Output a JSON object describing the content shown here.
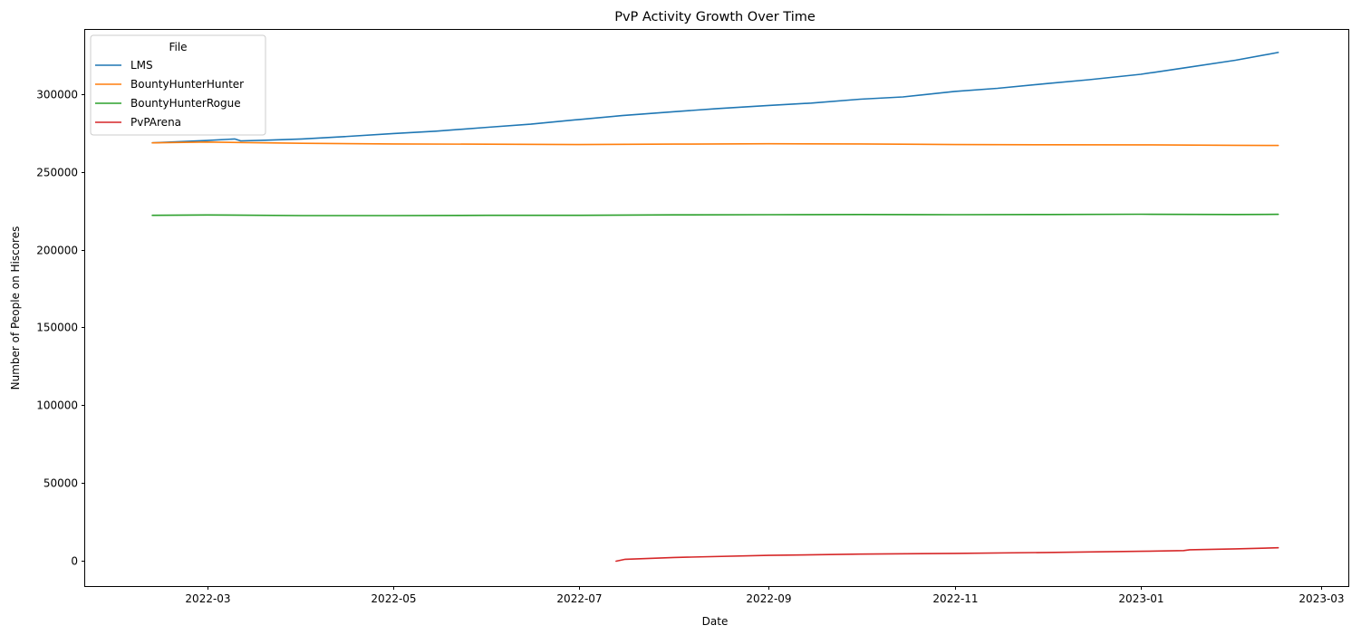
{
  "chart_data": {
    "type": "line",
    "title": "PvP Activity Growth Over Time",
    "xlabel": "Date",
    "ylabel": "Number of People on Hiscores",
    "x_type": "date",
    "xlim": [
      "2022-01-20",
      "2023-03-10"
    ],
    "ylim": [
      -16000,
      341000
    ],
    "xticks": [
      "2022-03-01",
      "2022-05-01",
      "2022-07-01",
      "2022-09-01",
      "2022-11-01",
      "2023-01-01",
      "2023-03-01"
    ],
    "xtick_labels": [
      "2022-03",
      "2022-05",
      "2022-07",
      "2022-09",
      "2022-11",
      "2023-01",
      "2023-03"
    ],
    "yticks": [
      0,
      50000,
      100000,
      150000,
      200000,
      250000,
      300000
    ],
    "ytick_labels": [
      "0",
      "50000",
      "100000",
      "150000",
      "200000",
      "250000",
      "300000"
    ],
    "grid": false,
    "legend": {
      "title": "File",
      "placement": "upper left"
    },
    "series": [
      {
        "name": "LMS",
        "color": "#1f77b4",
        "points": [
          [
            "2022-02-11",
            268500
          ],
          [
            "2022-03-01",
            270000
          ],
          [
            "2022-03-10",
            271000
          ],
          [
            "2022-03-12",
            269800
          ],
          [
            "2022-03-20",
            270200
          ],
          [
            "2022-04-01",
            271000
          ],
          [
            "2022-04-15",
            272500
          ],
          [
            "2022-05-01",
            274500
          ],
          [
            "2022-05-15",
            276000
          ],
          [
            "2022-06-01",
            278500
          ],
          [
            "2022-06-15",
            280500
          ],
          [
            "2022-07-01",
            283500
          ],
          [
            "2022-07-15",
            286000
          ],
          [
            "2022-08-01",
            288500
          ],
          [
            "2022-08-15",
            290500
          ],
          [
            "2022-09-01",
            292500
          ],
          [
            "2022-09-15",
            294000
          ],
          [
            "2022-10-01",
            296500
          ],
          [
            "2022-10-15",
            298000
          ],
          [
            "2022-11-01",
            301500
          ],
          [
            "2022-11-15",
            303500
          ],
          [
            "2022-12-01",
            306500
          ],
          [
            "2022-12-15",
            309000
          ],
          [
            "2023-01-01",
            312500
          ],
          [
            "2023-01-15",
            316500
          ],
          [
            "2023-02-01",
            321500
          ],
          [
            "2023-02-15",
            326500
          ]
        ]
      },
      {
        "name": "BountyHunterHunter",
        "color": "#ff7f0e",
        "points": [
          [
            "2022-02-11",
            268500
          ],
          [
            "2022-03-01",
            269000
          ],
          [
            "2022-04-01",
            268200
          ],
          [
            "2022-05-01",
            267800
          ],
          [
            "2022-06-01",
            267600
          ],
          [
            "2022-07-01",
            267400
          ],
          [
            "2022-08-01",
            267700
          ],
          [
            "2022-09-01",
            267900
          ],
          [
            "2022-10-01",
            267800
          ],
          [
            "2022-11-01",
            267400
          ],
          [
            "2022-12-01",
            267300
          ],
          [
            "2023-01-01",
            267200
          ],
          [
            "2023-02-01",
            266900
          ],
          [
            "2023-02-15",
            266800
          ]
        ]
      },
      {
        "name": "BountyHunterRogue",
        "color": "#2ca02c",
        "points": [
          [
            "2022-02-11",
            222000
          ],
          [
            "2022-03-01",
            222200
          ],
          [
            "2022-04-01",
            221800
          ],
          [
            "2022-05-01",
            221800
          ],
          [
            "2022-06-01",
            222000
          ],
          [
            "2022-07-01",
            222000
          ],
          [
            "2022-08-01",
            222300
          ],
          [
            "2022-09-01",
            222400
          ],
          [
            "2022-10-01",
            222500
          ],
          [
            "2022-11-01",
            222400
          ],
          [
            "2022-12-01",
            222500
          ],
          [
            "2023-01-01",
            222700
          ],
          [
            "2023-02-01",
            222500
          ],
          [
            "2023-02-15",
            222600
          ]
        ]
      },
      {
        "name": "PvPArena",
        "color": "#d62728",
        "points": [
          [
            "2022-07-13",
            0
          ],
          [
            "2022-07-16",
            1200
          ],
          [
            "2022-08-01",
            2400
          ],
          [
            "2022-09-01",
            3700
          ],
          [
            "2022-10-01",
            4500
          ],
          [
            "2022-11-01",
            5000
          ],
          [
            "2022-12-01",
            5600
          ],
          [
            "2023-01-01",
            6300
          ],
          [
            "2023-01-15",
            6800
          ],
          [
            "2023-01-17",
            7300
          ],
          [
            "2023-02-01",
            7900
          ],
          [
            "2023-02-15",
            8600
          ]
        ]
      }
    ]
  }
}
